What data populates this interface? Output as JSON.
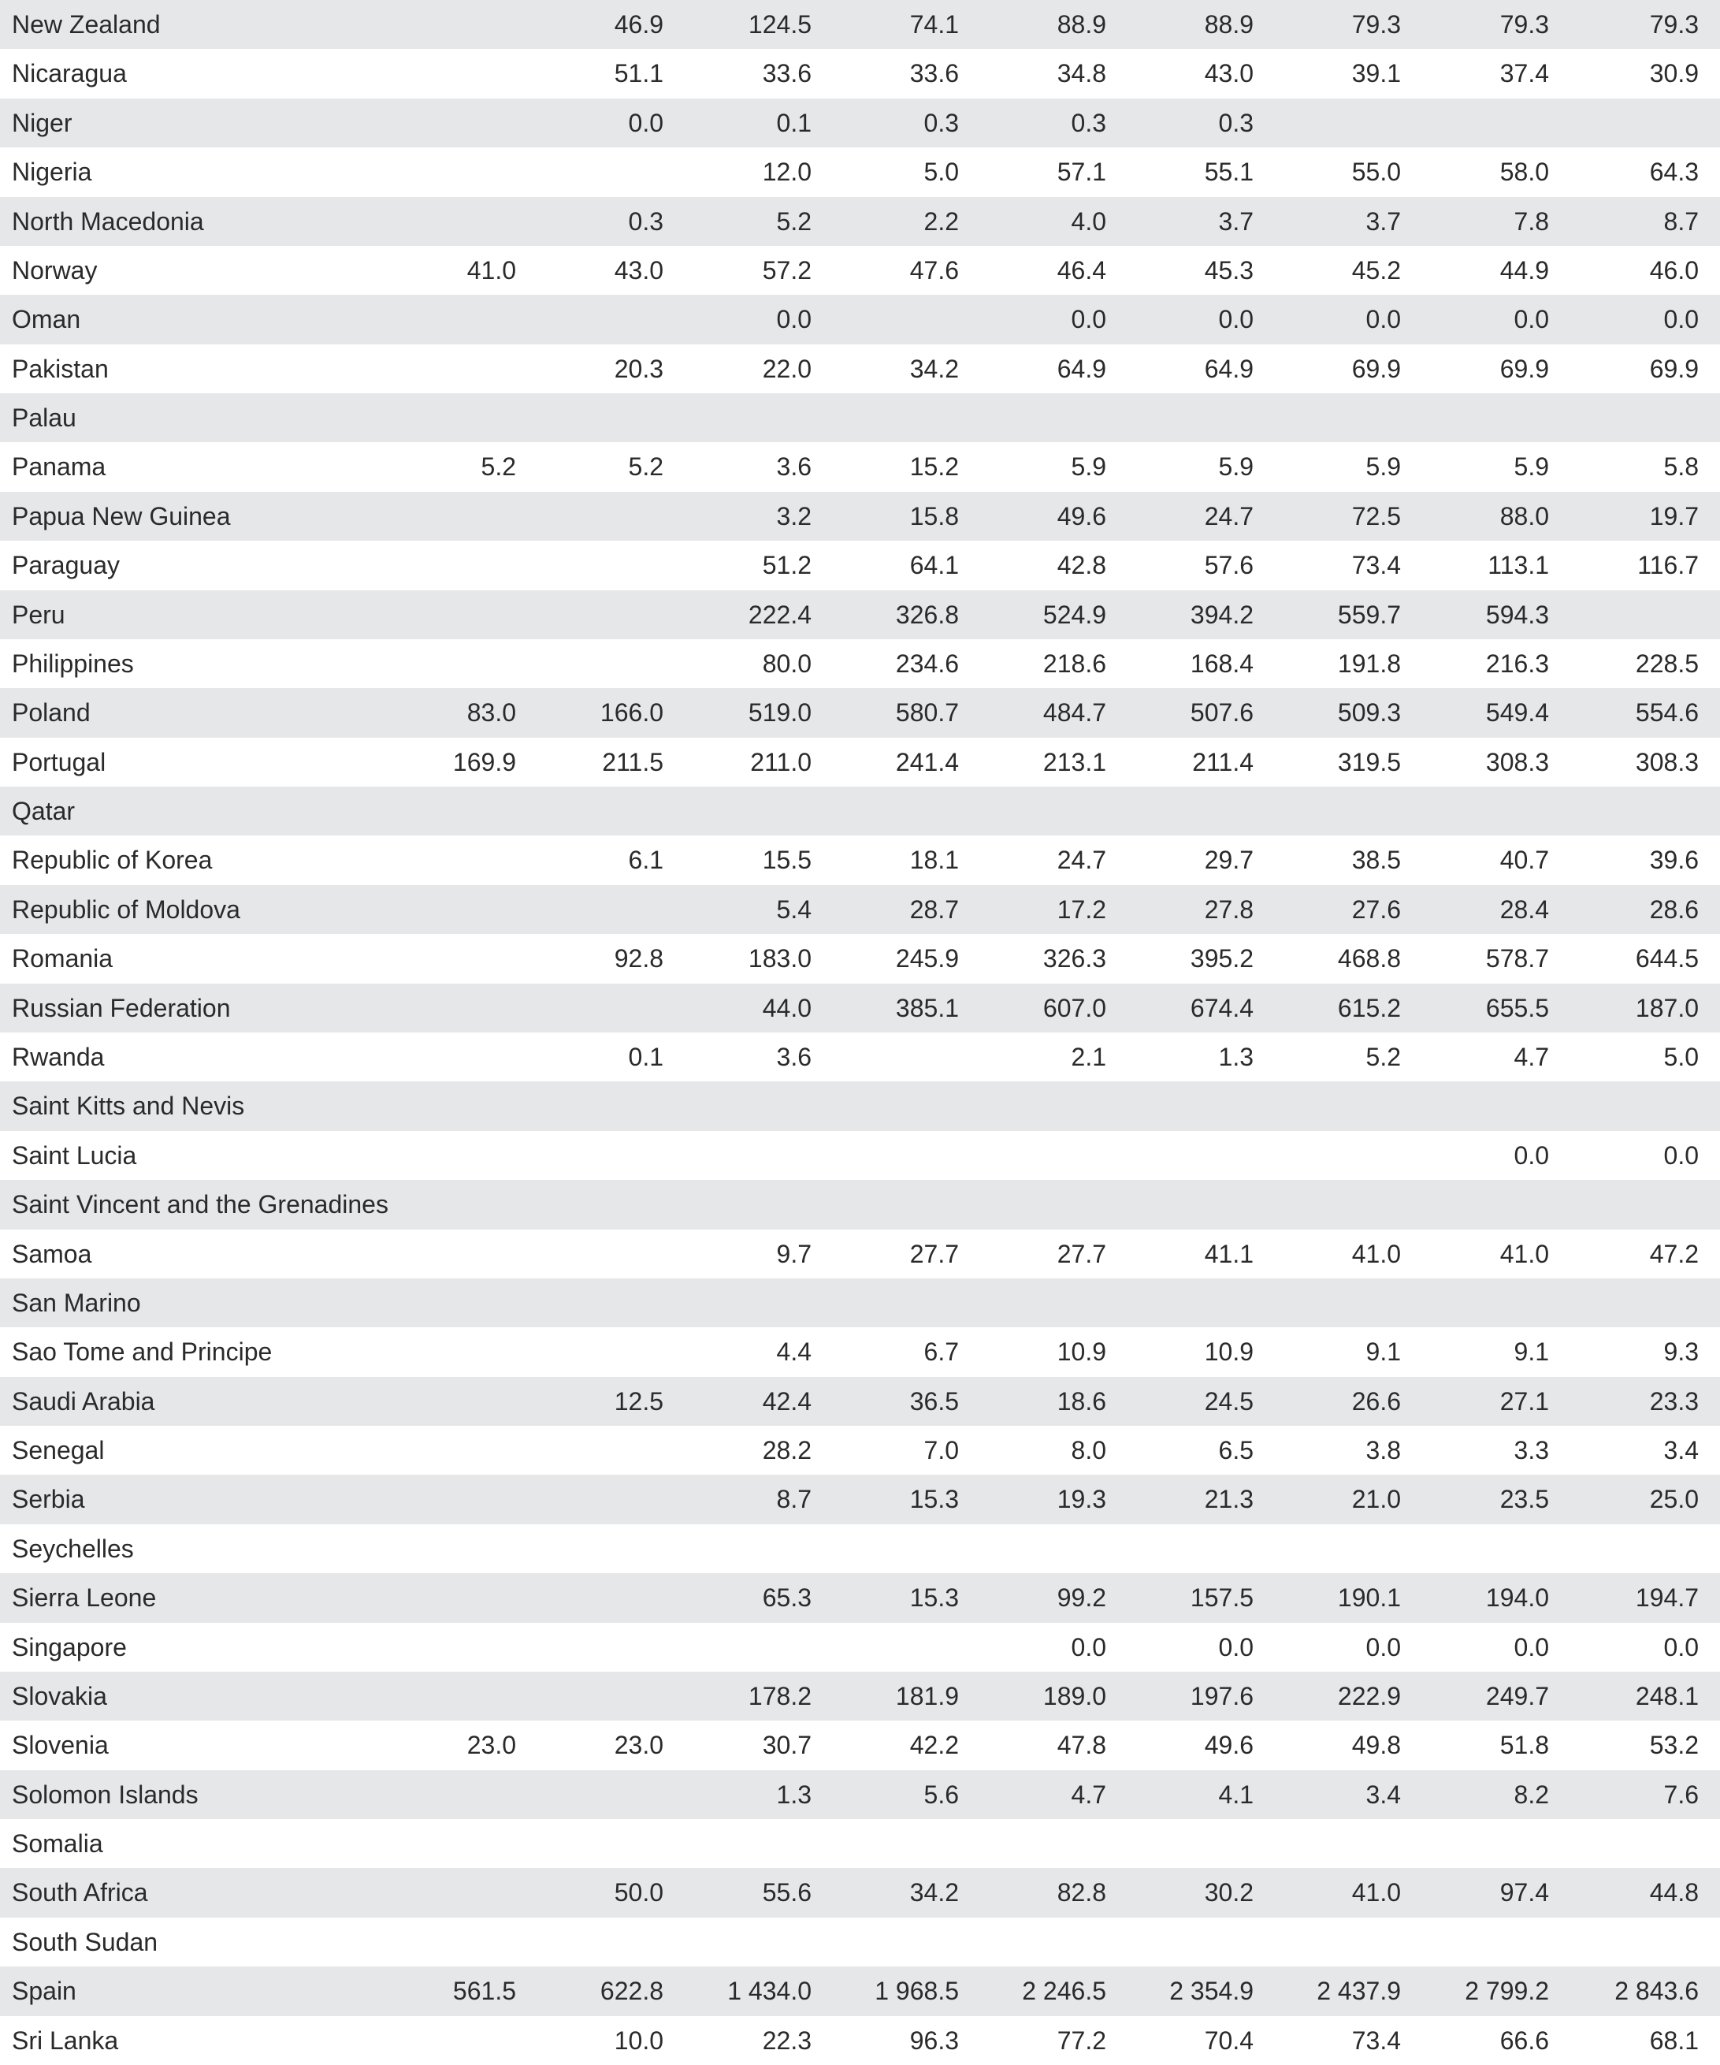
{
  "table": {
    "rows": [
      [
        "New Zealand",
        null,
        "46.9",
        "124.5",
        "74.1",
        "88.9",
        "88.9",
        "79.3",
        "79.3",
        "79.3"
      ],
      [
        "Nicaragua",
        null,
        "51.1",
        "33.6",
        "33.6",
        "34.8",
        "43.0",
        "39.1",
        "37.4",
        "30.9"
      ],
      [
        "Niger",
        null,
        "0.0",
        "0.1",
        "0.3",
        "0.3",
        "0.3",
        null,
        null,
        null
      ],
      [
        "Nigeria",
        null,
        null,
        "12.0",
        "5.0",
        "57.1",
        "55.1",
        "55.0",
        "58.0",
        "64.3"
      ],
      [
        "North Macedonia",
        null,
        "0.3",
        "5.2",
        "2.2",
        "4.0",
        "3.7",
        "3.7",
        "7.8",
        "8.7"
      ],
      [
        "Norway",
        "41.0",
        "43.0",
        "57.2",
        "47.6",
        "46.4",
        "45.3",
        "45.2",
        "44.9",
        "46.0"
      ],
      [
        "Oman",
        null,
        null,
        "0.0",
        null,
        "0.0",
        "0.0",
        "0.0",
        "0.0",
        "0.0"
      ],
      [
        "Pakistan",
        null,
        "20.3",
        "22.0",
        "34.2",
        "64.9",
        "64.9",
        "69.9",
        "69.9",
        "69.9"
      ],
      [
        "Palau",
        null,
        null,
        null,
        null,
        null,
        null,
        null,
        null,
        null
      ],
      [
        "Panama",
        "5.2",
        "5.2",
        "3.6",
        "15.2",
        "5.9",
        "5.9",
        "5.9",
        "5.9",
        "5.8"
      ],
      [
        "Papua New Guinea",
        null,
        null,
        "3.2",
        "15.8",
        "49.6",
        "24.7",
        "72.5",
        "88.0",
        "19.7"
      ],
      [
        "Paraguay",
        null,
        null,
        "51.2",
        "64.1",
        "42.8",
        "57.6",
        "73.4",
        "113.1",
        "116.7"
      ],
      [
        "Peru",
        null,
        null,
        "222.4",
        "326.8",
        "524.9",
        "394.2",
        "559.7",
        "594.3",
        null
      ],
      [
        "Philippines",
        null,
        null,
        "80.0",
        "234.6",
        "218.6",
        "168.4",
        "191.8",
        "216.3",
        "228.5"
      ],
      [
        "Poland",
        "83.0",
        "166.0",
        "519.0",
        "580.7",
        "484.7",
        "507.6",
        "509.3",
        "549.4",
        "554.6"
      ],
      [
        "Portugal",
        "169.9",
        "211.5",
        "211.0",
        "241.4",
        "213.1",
        "211.4",
        "319.5",
        "308.3",
        "308.3"
      ],
      [
        "Qatar",
        null,
        null,
        null,
        null,
        null,
        null,
        null,
        null,
        null
      ],
      [
        "Republic of Korea",
        null,
        "6.1",
        "15.5",
        "18.1",
        "24.7",
        "29.7",
        "38.5",
        "40.7",
        "39.6"
      ],
      [
        "Republic of Moldova",
        null,
        null,
        "5.4",
        "28.7",
        "17.2",
        "27.8",
        "27.6",
        "28.4",
        "28.6"
      ],
      [
        "Romania",
        null,
        "92.8",
        "183.0",
        "245.9",
        "326.3",
        "395.2",
        "468.8",
        "578.7",
        "644.5"
      ],
      [
        "Russian Federation",
        null,
        null,
        "44.0",
        "385.1",
        "607.0",
        "674.4",
        "615.2",
        "655.5",
        "187.0"
      ],
      [
        "Rwanda",
        null,
        "0.1",
        "3.6",
        null,
        "2.1",
        "1.3",
        "5.2",
        "4.7",
        "5.0"
      ],
      [
        "Saint Kitts and Nevis",
        null,
        null,
        null,
        null,
        null,
        null,
        null,
        null,
        null
      ],
      [
        "Saint Lucia",
        null,
        null,
        null,
        null,
        null,
        null,
        null,
        "0.0",
        "0.0"
      ],
      [
        "Saint Vincent and the Grenadines",
        null,
        null,
        null,
        null,
        null,
        null,
        null,
        null,
        null
      ],
      [
        "Samoa",
        null,
        null,
        "9.7",
        "27.7",
        "27.7",
        "41.1",
        "41.0",
        "41.0",
        "47.2"
      ],
      [
        "San Marino",
        null,
        null,
        null,
        null,
        null,
        null,
        null,
        null,
        null
      ],
      [
        "Sao Tome and Principe",
        null,
        null,
        "4.4",
        "6.7",
        "10.9",
        "10.9",
        "9.1",
        "9.1",
        "9.3"
      ],
      [
        "Saudi Arabia",
        null,
        "12.5",
        "42.4",
        "36.5",
        "18.6",
        "24.5",
        "26.6",
        "27.1",
        "23.3"
      ],
      [
        "Senegal",
        null,
        null,
        "28.2",
        "7.0",
        "8.0",
        "6.5",
        "3.8",
        "3.3",
        "3.4"
      ],
      [
        "Serbia",
        null,
        null,
        "8.7",
        "15.3",
        "19.3",
        "21.3",
        "21.0",
        "23.5",
        "25.0"
      ],
      [
        "Seychelles",
        null,
        null,
        null,
        null,
        null,
        null,
        null,
        null,
        null
      ],
      [
        "Sierra Leone",
        null,
        null,
        "65.3",
        "15.3",
        "99.2",
        "157.5",
        "190.1",
        "194.0",
        "194.7"
      ],
      [
        "Singapore",
        null,
        null,
        null,
        null,
        "0.0",
        "0.0",
        "0.0",
        "0.0",
        "0.0"
      ],
      [
        "Slovakia",
        null,
        null,
        "178.2",
        "181.9",
        "189.0",
        "197.6",
        "222.9",
        "249.7",
        "248.1"
      ],
      [
        "Slovenia",
        "23.0",
        "23.0",
        "30.7",
        "42.2",
        "47.8",
        "49.6",
        "49.8",
        "51.8",
        "53.2"
      ],
      [
        "Solomon Islands",
        null,
        null,
        "1.3",
        "5.6",
        "4.7",
        "4.1",
        "3.4",
        "8.2",
        "7.6"
      ],
      [
        "Somalia",
        null,
        null,
        null,
        null,
        null,
        null,
        null,
        null,
        null
      ],
      [
        "South Africa",
        null,
        "50.0",
        "55.6",
        "34.2",
        "82.8",
        "30.2",
        "41.0",
        "97.4",
        "44.8"
      ],
      [
        "South Sudan",
        null,
        null,
        null,
        null,
        null,
        null,
        null,
        null,
        null
      ],
      [
        "Spain",
        "561.5",
        "622.8",
        "1 434.0",
        "1 968.5",
        "2 246.5",
        "2 354.9",
        "2 437.9",
        "2 799.2",
        "2 843.6"
      ],
      [
        "Sri Lanka",
        null,
        "10.0",
        "22.3",
        "96.3",
        "77.2",
        "70.4",
        "73.4",
        "66.6",
        "68.1"
      ]
    ]
  }
}
